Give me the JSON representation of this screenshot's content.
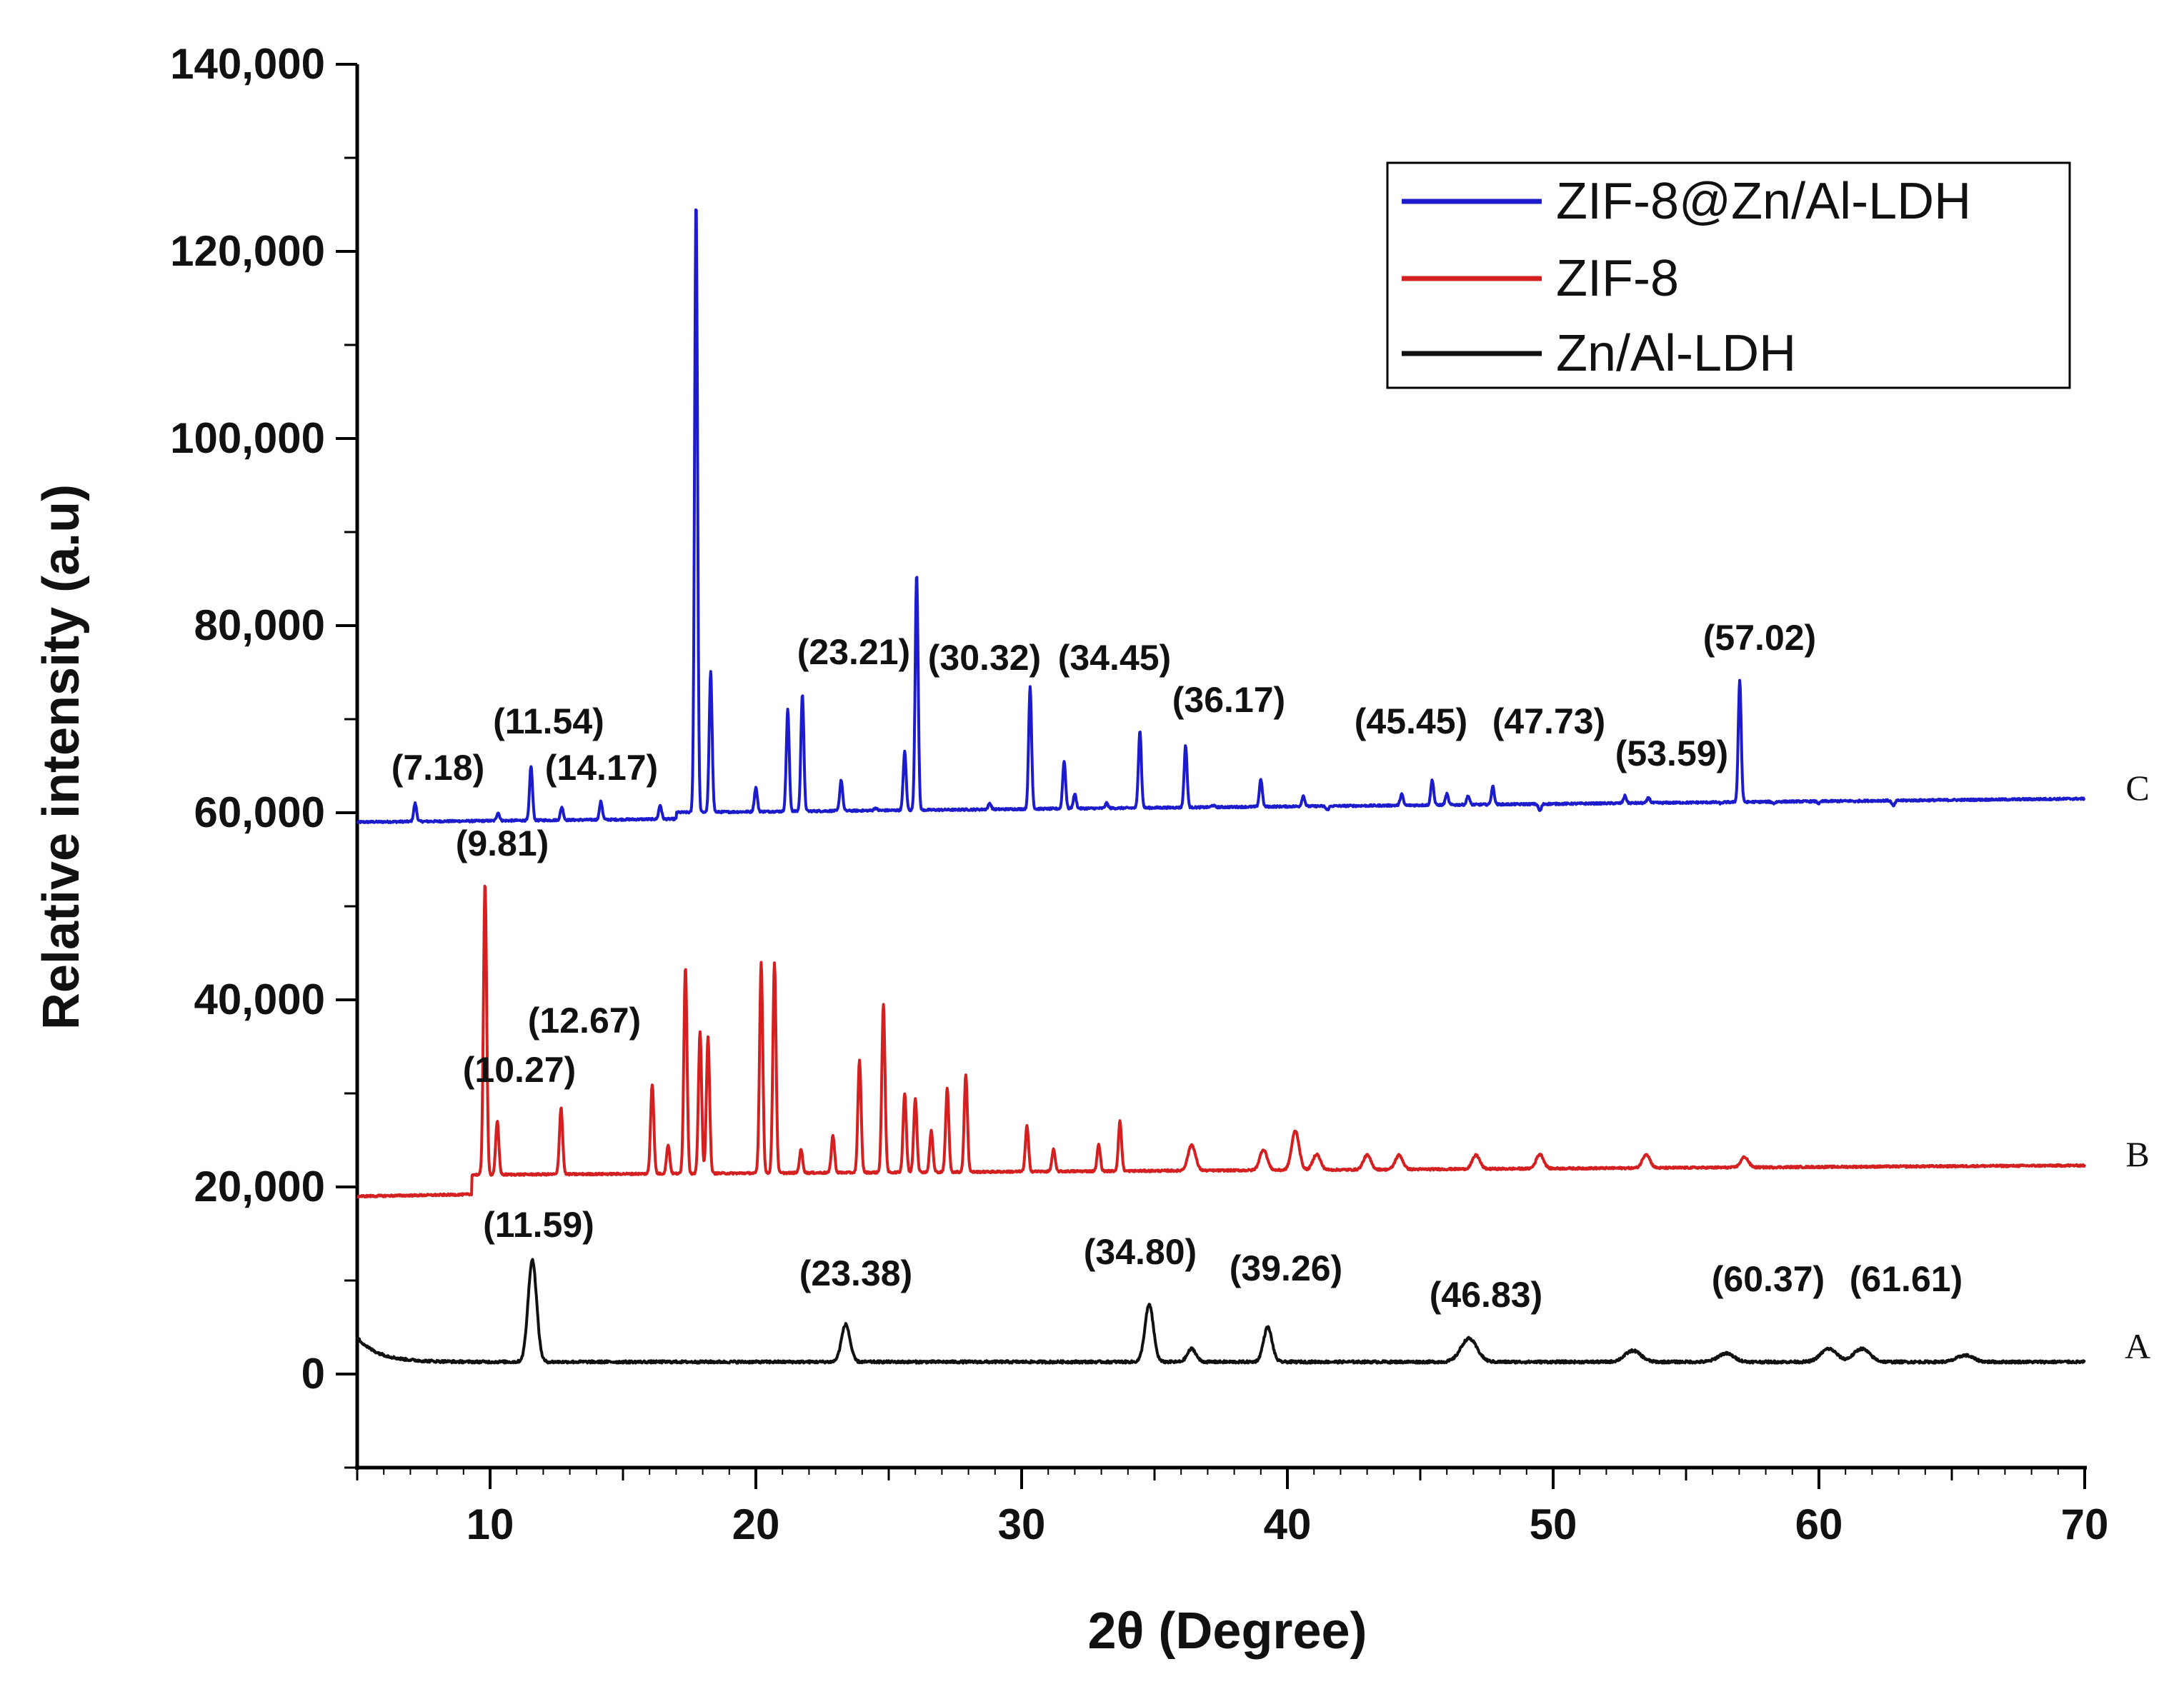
{
  "chart_data": {
    "type": "line",
    "xlabel": "2θ (Degree)",
    "ylabel": "Relative intensity (a.u)",
    "xlim": [
      5,
      70
    ],
    "ylim": [
      -10000,
      140000
    ],
    "xticks": [
      10,
      20,
      30,
      40,
      50,
      60,
      70
    ],
    "xtick_labels": [
      "10",
      "20",
      "30",
      "40",
      "50",
      "60",
      "70"
    ],
    "yticks": [
      0,
      20000,
      40000,
      60000,
      80000,
      100000,
      120000,
      140000
    ],
    "ytick_labels": [
      "0",
      "20,000",
      "40,000",
      "60,000",
      "80,000",
      "100,000",
      "120,000",
      "140,000"
    ],
    "legend": {
      "position": "top-right",
      "entries": [
        "ZIF-8@Zn/Al-LDH",
        "ZIF-8",
        "Zn/Al-LDH"
      ]
    },
    "series": [
      {
        "name": "ZIF-8@Zn/Al-LDH",
        "tag": "C",
        "color": "#1c1ccc",
        "peaks": [
          [
            7.18,
            61000
          ],
          [
            10.3,
            60000
          ],
          [
            11.54,
            65000
          ],
          [
            12.7,
            60600
          ],
          [
            14.17,
            61200
          ],
          [
            16.4,
            60800
          ],
          [
            17.75,
            125500
          ],
          [
            18.3,
            75000
          ],
          [
            20.0,
            62700
          ],
          [
            21.2,
            71000
          ],
          [
            21.75,
            72700
          ],
          [
            23.21,
            63500
          ],
          [
            24.5,
            60500
          ],
          [
            25.6,
            66500
          ],
          [
            26.05,
            85600
          ],
          [
            27.5,
            60300
          ],
          [
            28.8,
            61000
          ],
          [
            30.32,
            73500
          ],
          [
            31.6,
            65500
          ],
          [
            32.0,
            62000
          ],
          [
            33.2,
            61000
          ],
          [
            34.45,
            68800
          ],
          [
            36.17,
            67200
          ],
          [
            37.2,
            60800
          ],
          [
            39.0,
            63600
          ],
          [
            40.6,
            61800
          ],
          [
            41.5,
            60300
          ],
          [
            44.3,
            62000
          ],
          [
            45.45,
            63500
          ],
          [
            46.0,
            62000
          ],
          [
            46.8,
            61800
          ],
          [
            47.73,
            62800
          ],
          [
            49.5,
            60200
          ],
          [
            52.7,
            61800
          ],
          [
            53.59,
            61600
          ],
          [
            56.3,
            61000
          ],
          [
            57.02,
            74200
          ],
          [
            58.3,
            61000
          ],
          [
            60.0,
            61000
          ],
          [
            61.4,
            61200
          ],
          [
            62.8,
            60700
          ]
        ],
        "annotations": [
          "(7.18)",
          "(11.54)",
          "(14.17)",
          "(23.21)",
          "(30.32)",
          "(34.45)",
          "(36.17)",
          "(45.45)",
          "(47.73)",
          "(53.59)",
          "(57.02)"
        ]
      },
      {
        "name": "ZIF-8",
        "tag": "B",
        "color": "#d42020",
        "peaks": [
          [
            9.81,
            52500
          ],
          [
            10.27,
            27000
          ],
          [
            12.67,
            28500
          ],
          [
            16.1,
            31000
          ],
          [
            16.7,
            24500
          ],
          [
            17.35,
            43500
          ],
          [
            17.9,
            36500
          ],
          [
            18.2,
            36000
          ],
          [
            20.2,
            44000
          ],
          [
            20.7,
            44000
          ],
          [
            21.7,
            24000
          ],
          [
            22.9,
            25500
          ],
          [
            23.9,
            33500
          ],
          [
            24.8,
            39500
          ],
          [
            25.6,
            30000
          ],
          [
            26.0,
            29500
          ],
          [
            26.6,
            26000
          ],
          [
            27.2,
            30500
          ],
          [
            27.9,
            32000
          ],
          [
            30.2,
            26500
          ],
          [
            31.2,
            24000
          ],
          [
            32.9,
            24500
          ],
          [
            33.7,
            27000
          ],
          [
            36.4,
            24500
          ],
          [
            39.1,
            24000
          ],
          [
            40.3,
            26000
          ],
          [
            41.1,
            23500
          ],
          [
            43.0,
            23400
          ],
          [
            44.2,
            23400
          ],
          [
            47.1,
            23400
          ],
          [
            49.5,
            23500
          ],
          [
            53.5,
            23500
          ],
          [
            57.2,
            23200
          ]
        ],
        "annotations": [
          "(9.81)",
          "(10.27)",
          "(12.67)"
        ]
      },
      {
        "name": "Zn/Al-LDH",
        "tag": "A",
        "color": "#111111",
        "peaks": [
          [
            11.59,
            12200
          ],
          [
            23.38,
            5300
          ],
          [
            34.8,
            7400
          ],
          [
            36.4,
            2700
          ],
          [
            39.26,
            5000
          ],
          [
            46.83,
            3800
          ],
          [
            53.0,
            2500
          ],
          [
            56.5,
            2200
          ],
          [
            60.37,
            2700
          ],
          [
            61.61,
            2700
          ],
          [
            65.5,
            2000
          ]
        ],
        "annotations": [
          "(11.59)",
          "(23.38)",
          "(34.80)",
          "(39.26)",
          "(46.83)",
          "(60.37)",
          "(61.61)"
        ]
      }
    ]
  }
}
